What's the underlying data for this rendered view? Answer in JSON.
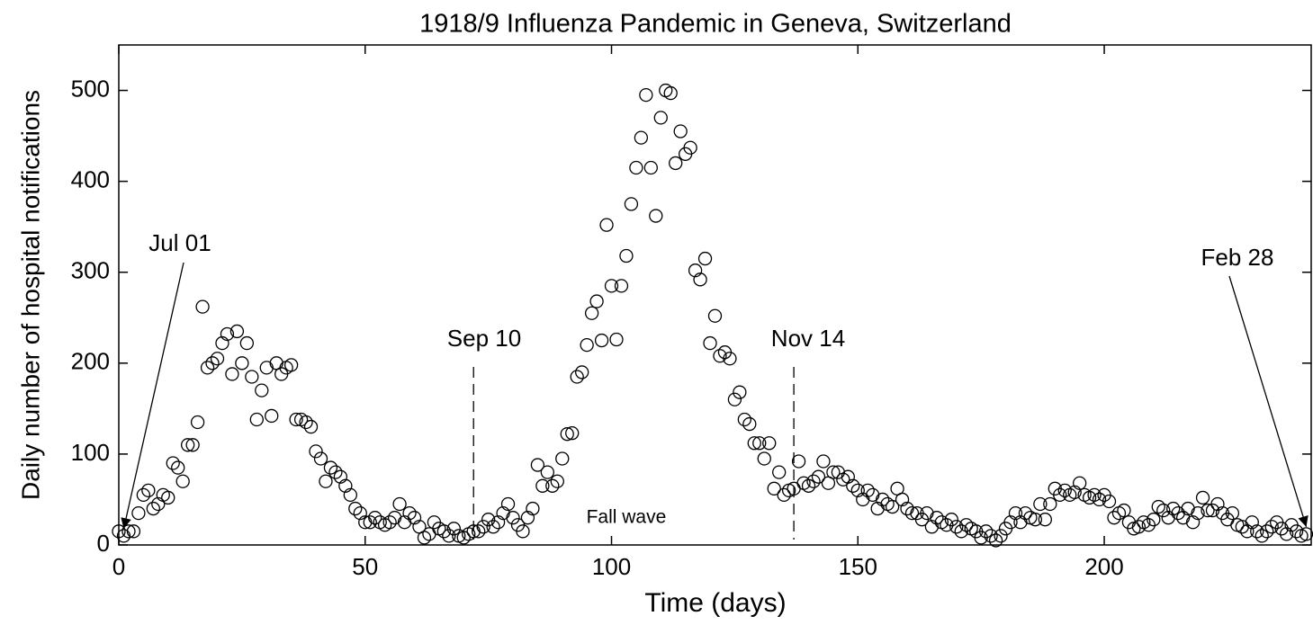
{
  "chart_data": {
    "type": "scatter",
    "title": "1918/9 Influenza Pandemic in Geneva, Switzerland",
    "x_label": "Time (days)",
    "y_label": "Daily number of hospital notifications",
    "color": "#000000",
    "xlim": [
      0,
      242
    ],
    "ylim": [
      0,
      550
    ],
    "xticks": [
      0,
      50,
      100,
      150,
      200
    ],
    "yticks": [
      0,
      100,
      200,
      300,
      400,
      500
    ],
    "annotations": [
      {
        "text": "Jul 01",
        "x": 1
      },
      {
        "text": "Sep 10",
        "x": 72
      },
      {
        "text": "Nov 14",
        "x": 137
      },
      {
        "text": "Feb 28",
        "x": 241
      }
    ],
    "note": "Fall wave",
    "x": [
      0,
      1,
      2,
      3,
      4,
      5,
      6,
      7,
      8,
      9,
      10,
      11,
      12,
      13,
      14,
      15,
      16,
      17,
      18,
      19,
      20,
      21,
      22,
      23,
      24,
      25,
      26,
      27,
      28,
      29,
      30,
      31,
      32,
      33,
      34,
      35,
      36,
      37,
      38,
      39,
      40,
      41,
      42,
      43,
      44,
      45,
      46,
      47,
      48,
      49,
      50,
      51,
      52,
      53,
      54,
      55,
      56,
      57,
      58,
      59,
      60,
      61,
      62,
      63,
      64,
      65,
      66,
      67,
      68,
      69,
      70,
      71,
      72,
      73,
      74,
      75,
      76,
      77,
      78,
      79,
      80,
      81,
      82,
      83,
      84,
      85,
      86,
      87,
      88,
      89,
      90,
      91,
      92,
      93,
      94,
      95,
      96,
      97,
      98,
      99,
      100,
      101,
      102,
      103,
      104,
      105,
      106,
      107,
      108,
      109,
      110,
      111,
      112,
      113,
      114,
      115,
      116,
      117,
      118,
      119,
      120,
      121,
      122,
      123,
      124,
      125,
      126,
      127,
      128,
      129,
      130,
      131,
      132,
      133,
      134,
      135,
      136,
      137,
      138,
      139,
      140,
      141,
      142,
      143,
      144,
      145,
      146,
      147,
      148,
      149,
      150,
      151,
      152,
      153,
      154,
      155,
      156,
      157,
      158,
      159,
      160,
      161,
      162,
      163,
      164,
      165,
      166,
      167,
      168,
      169,
      170,
      171,
      172,
      173,
      174,
      175,
      176,
      177,
      178,
      179,
      180,
      181,
      182,
      183,
      184,
      185,
      186,
      187,
      188,
      189,
      190,
      191,
      192,
      193,
      194,
      195,
      196,
      197,
      198,
      199,
      200,
      201,
      202,
      203,
      204,
      205,
      206,
      207,
      208,
      209,
      210,
      211,
      212,
      213,
      214,
      215,
      216,
      217,
      218,
      219,
      220,
      221,
      222,
      223,
      224,
      225,
      226,
      227,
      228,
      229,
      230,
      231,
      232,
      233,
      234,
      235,
      236,
      237,
      238,
      239,
      240,
      241
    ],
    "values": [
      15,
      10,
      15,
      15,
      35,
      55,
      60,
      40,
      45,
      55,
      52,
      90,
      85,
      70,
      110,
      110,
      135,
      262,
      195,
      200,
      205,
      222,
      232,
      188,
      235,
      200,
      222,
      185,
      138,
      170,
      195,
      142,
      200,
      188,
      195,
      198,
      138,
      138,
      135,
      130,
      103,
      95,
      70,
      85,
      80,
      75,
      65,
      55,
      40,
      35,
      25,
      25,
      30,
      25,
      22,
      25,
      30,
      45,
      25,
      35,
      30,
      20,
      8,
      12,
      25,
      18,
      15,
      10,
      18,
      10,
      8,
      12,
      15,
      15,
      20,
      28,
      20,
      25,
      35,
      45,
      30,
      22,
      15,
      30,
      40,
      88,
      65,
      80,
      65,
      70,
      95,
      122,
      123,
      185,
      190,
      220,
      255,
      268,
      225,
      352,
      285,
      226,
      285,
      318,
      375,
      415,
      448,
      495,
      415,
      362,
      470,
      500,
      497,
      420,
      455,
      430,
      437,
      302,
      292,
      315,
      222,
      252,
      208,
      212,
      205,
      160,
      168,
      138,
      133,
      112,
      112,
      95,
      112,
      62,
      80,
      55,
      60,
      62,
      92,
      68,
      65,
      70,
      75,
      92,
      68,
      80,
      80,
      72,
      75,
      65,
      60,
      50,
      60,
      55,
      40,
      50,
      45,
      42,
      62,
      50,
      40,
      35,
      35,
      28,
      35,
      20,
      30,
      25,
      22,
      28,
      20,
      15,
      22,
      18,
      15,
      8,
      15,
      10,
      5,
      10,
      18,
      25,
      35,
      25,
      35,
      30,
      28,
      45,
      28,
      45,
      62,
      55,
      60,
      55,
      58,
      68,
      55,
      52,
      55,
      50,
      55,
      48,
      30,
      35,
      38,
      25,
      18,
      20,
      25,
      22,
      28,
      42,
      38,
      30,
      40,
      35,
      30,
      40,
      25,
      35,
      52,
      38,
      38,
      45,
      35,
      28,
      35,
      22,
      20,
      15,
      25,
      15,
      10,
      15,
      20,
      25,
      18,
      12,
      22,
      15,
      10,
      12
    ]
  }
}
